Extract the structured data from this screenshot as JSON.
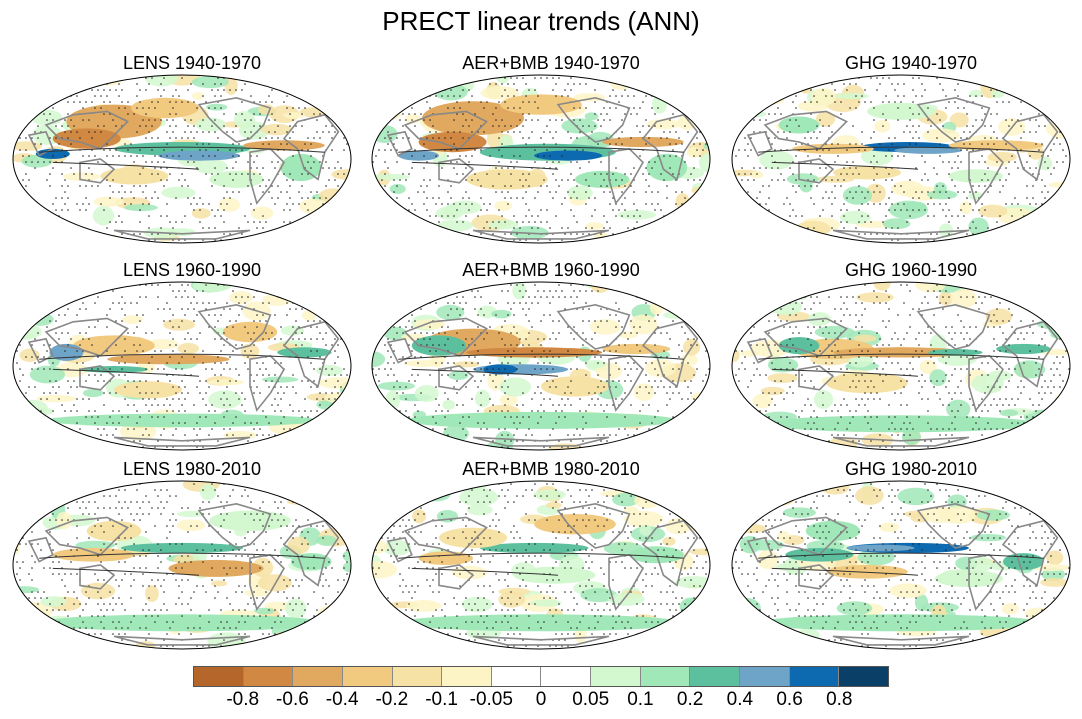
{
  "title": "PRECT linear trends (ANN)",
  "panels": [
    {
      "label": "LENS 1940-1970",
      "pattern": 1
    },
    {
      "label": "AER+BMB 1940-1970",
      "pattern": 2
    },
    {
      "label": "GHG 1940-1970",
      "pattern": 3
    },
    {
      "label": "LENS 1960-1990",
      "pattern": 4
    },
    {
      "label": "AER+BMB 1960-1990",
      "pattern": 5
    },
    {
      "label": "GHG 1960-1990",
      "pattern": 6
    },
    {
      "label": "LENS 1980-2010",
      "pattern": 7
    },
    {
      "label": "AER+BMB 1980-2010",
      "pattern": 8
    },
    {
      "label": "GHG 1980-2010",
      "pattern": 9
    }
  ],
  "colorbar": {
    "colors": [
      "#b5672b",
      "#d08843",
      "#e1a95f",
      "#f1c97f",
      "#f7e2a5",
      "#fdf4c6",
      "#ffffff",
      "#ffffff",
      "#d3f8d0",
      "#a0e8b8",
      "#5cc09f",
      "#6fa4c9",
      "#0e6ab0",
      "#0a3f67"
    ],
    "labels": [
      "-0.8",
      "-0.6",
      "-0.4",
      "-0.2",
      "-0.1",
      "-0.05",
      "0",
      "0.05",
      "0.1",
      "0.2",
      "0.4",
      "0.6",
      "0.8"
    ]
  }
}
